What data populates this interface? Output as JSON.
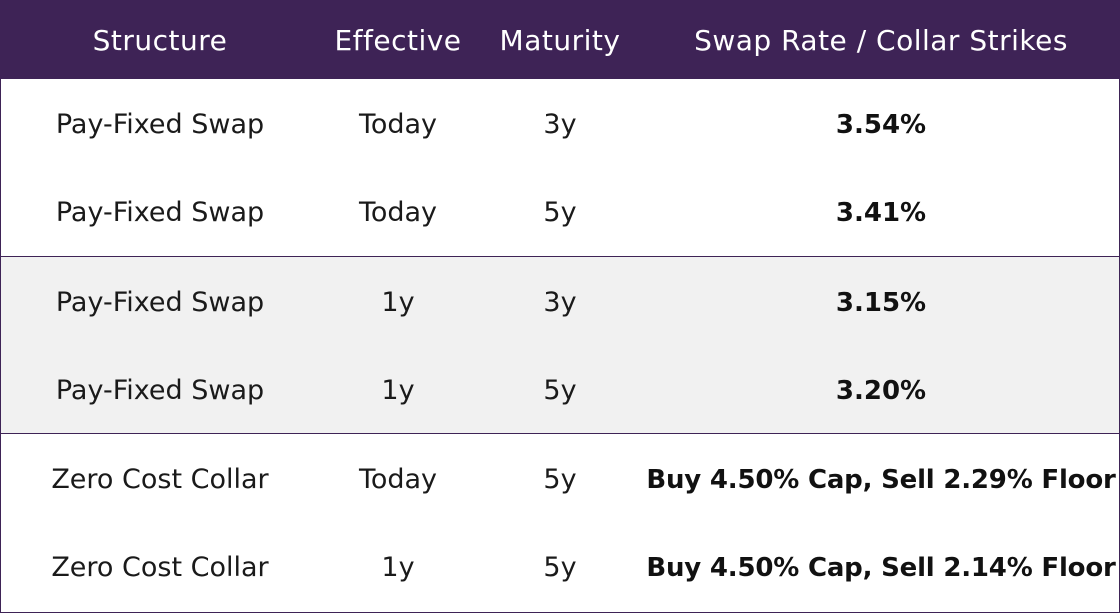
{
  "table": {
    "headers": [
      "Structure",
      "Effective",
      "Maturity",
      "Swap Rate / Collar Strikes"
    ],
    "groups": [
      {
        "shaded": false,
        "rows": [
          {
            "structure": "Pay-Fixed Swap",
            "effective": "Today",
            "maturity": "3y",
            "rate": "3.54%"
          },
          {
            "structure": "Pay-Fixed Swap",
            "effective": "Today",
            "maturity": "5y",
            "rate": "3.41%"
          }
        ]
      },
      {
        "shaded": true,
        "rows": [
          {
            "structure": "Pay-Fixed Swap",
            "effective": "1y",
            "maturity": "3y",
            "rate": "3.15%"
          },
          {
            "structure": "Pay-Fixed Swap",
            "effective": "1y",
            "maturity": "5y",
            "rate": "3.20%"
          }
        ]
      },
      {
        "shaded": false,
        "rows": [
          {
            "structure": "Zero Cost Collar",
            "effective": "Today",
            "maturity": "5y",
            "rate": "Buy 4.50% Cap, Sell 2.29% Floor"
          },
          {
            "structure": "Zero Cost Collar",
            "effective": "1y",
            "maturity": "5y",
            "rate": "Buy 4.50% Cap, Sell 2.14% Floor"
          }
        ]
      }
    ]
  },
  "colors": {
    "header_bg": "#3e2356",
    "header_text": "#ffffff",
    "shaded_row_bg": "#f1f1f1",
    "border": "#3e2356"
  }
}
